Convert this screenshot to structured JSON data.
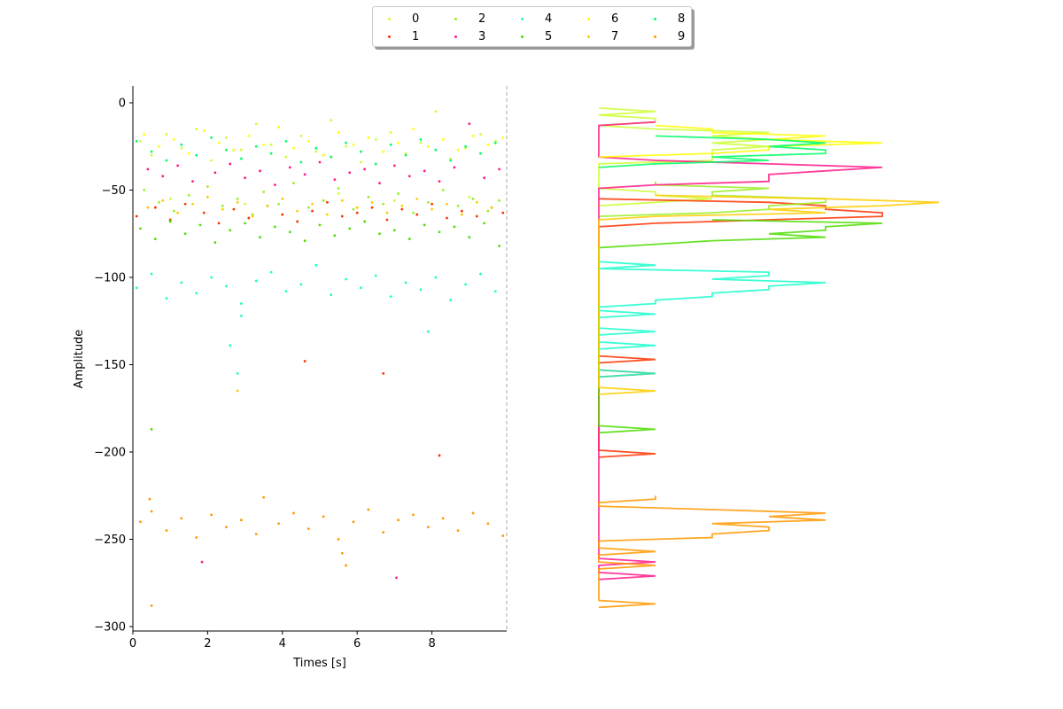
{
  "chart_data": [
    {
      "type": "scatter",
      "xlabel": "Times [s]",
      "ylabel": "Amplitude",
      "xlim": [
        0,
        10
      ],
      "ylim": [
        -302,
        10
      ],
      "xticks": [
        "0",
        "2",
        "4",
        "6",
        "8"
      ],
      "yticks": [
        "0",
        "−50",
        "−100",
        "−150",
        "−200",
        "−250",
        "−300"
      ],
      "grid": false,
      "legend_position": "top-center",
      "series": [
        {
          "name": "0",
          "color": "#ccff33",
          "points": [
            [
              0.2,
              -22
            ],
            [
              0.5,
              -30
            ],
            [
              0.9,
              -18
            ],
            [
              1.3,
              -26
            ],
            [
              1.7,
              -15
            ],
            [
              2.1,
              -33
            ],
            [
              2.5,
              -20
            ],
            [
              2.9,
              -27
            ],
            [
              3.3,
              -12
            ],
            [
              3.7,
              -24
            ],
            [
              4.1,
              -31
            ],
            [
              4.5,
              -19
            ],
            [
              4.9,
              -28
            ],
            [
              5.3,
              -10
            ],
            [
              5.7,
              -25
            ],
            [
              6.1,
              -34
            ],
            [
              6.5,
              -21
            ],
            [
              6.9,
              -17
            ],
            [
              7.3,
              -29
            ],
            [
              7.7,
              -23
            ],
            [
              8.1,
              -5
            ],
            [
              8.5,
              -32
            ],
            [
              8.9,
              -26
            ],
            [
              9.3,
              -18
            ],
            [
              9.7,
              -22
            ],
            [
              1.0,
              -55
            ],
            [
              3.0,
              -58
            ],
            [
              5.5,
              -52
            ],
            [
              7.0,
              -56
            ],
            [
              9.0,
              -54
            ]
          ]
        },
        {
          "name": "1",
          "color": "#ff3300",
          "points": [
            [
              0.1,
              -65
            ],
            [
              0.6,
              -60
            ],
            [
              1.0,
              -67
            ],
            [
              1.4,
              -58
            ],
            [
              1.9,
              -63
            ],
            [
              2.3,
              -69
            ],
            [
              2.7,
              -61
            ],
            [
              3.1,
              -66
            ],
            [
              3.6,
              -59
            ],
            [
              4.0,
              -64
            ],
            [
              4.4,
              -68
            ],
            [
              4.8,
              -62
            ],
            [
              5.2,
              -57
            ],
            [
              5.6,
              -65
            ],
            [
              6.0,
              -63
            ],
            [
              6.4,
              -60
            ],
            [
              6.8,
              -67
            ],
            [
              7.2,
              -61
            ],
            [
              7.6,
              -64
            ],
            [
              8.0,
              -58
            ],
            [
              8.4,
              -66
            ],
            [
              8.8,
              -62
            ],
            [
              9.2,
              -65
            ],
            [
              9.6,
              -60
            ],
            [
              9.9,
              -63
            ],
            [
              4.6,
              -148
            ],
            [
              6.7,
              -155
            ],
            [
              8.2,
              -202
            ]
          ]
        },
        {
          "name": "2",
          "color": "#99ee22",
          "points": [
            [
              0.3,
              -50
            ],
            [
              0.7,
              -57
            ],
            [
              1.1,
              -62
            ],
            [
              1.5,
              -53
            ],
            [
              2.0,
              -48
            ],
            [
              2.4,
              -59
            ],
            [
              2.8,
              -55
            ],
            [
              3.2,
              -64
            ],
            [
              3.5,
              -51
            ],
            [
              3.9,
              -58
            ],
            [
              4.3,
              -46
            ],
            [
              4.7,
              -60
            ],
            [
              5.1,
              -56
            ],
            [
              5.5,
              -49
            ],
            [
              5.9,
              -61
            ],
            [
              6.3,
              -54
            ],
            [
              6.7,
              -58
            ],
            [
              7.1,
              -52
            ],
            [
              7.5,
              -63
            ],
            [
              7.9,
              -57
            ],
            [
              8.3,
              -50
            ],
            [
              8.7,
              -59
            ],
            [
              9.1,
              -55
            ],
            [
              9.5,
              -62
            ],
            [
              9.8,
              -56
            ]
          ]
        },
        {
          "name": "3",
          "color": "#ff1a8c",
          "points": [
            [
              0.4,
              -38
            ],
            [
              0.8,
              -42
            ],
            [
              1.2,
              -36
            ],
            [
              1.6,
              -45
            ],
            [
              2.2,
              -40
            ],
            [
              2.6,
              -35
            ],
            [
              3.0,
              -43
            ],
            [
              3.4,
              -39
            ],
            [
              3.8,
              -47
            ],
            [
              4.2,
              -37
            ],
            [
              4.6,
              -41
            ],
            [
              5.0,
              -34
            ],
            [
              5.4,
              -44
            ],
            [
              5.8,
              -40
            ],
            [
              6.2,
              -38
            ],
            [
              6.6,
              -46
            ],
            [
              7.0,
              -36
            ],
            [
              7.4,
              -42
            ],
            [
              7.8,
              -39
            ],
            [
              8.2,
              -45
            ],
            [
              8.6,
              -37
            ],
            [
              9.0,
              -12
            ],
            [
              9.4,
              -43
            ],
            [
              9.8,
              -38
            ],
            [
              1.85,
              -263
            ],
            [
              7.05,
              -272
            ]
          ]
        },
        {
          "name": "4",
          "color": "#1affcc",
          "points": [
            [
              0.1,
              -106
            ],
            [
              0.5,
              -98
            ],
            [
              0.9,
              -112
            ],
            [
              1.3,
              -103
            ],
            [
              1.7,
              -109
            ],
            [
              2.1,
              -100
            ],
            [
              2.5,
              -105
            ],
            [
              2.9,
              -115
            ],
            [
              3.3,
              -102
            ],
            [
              3.7,
              -97
            ],
            [
              4.1,
              -108
            ],
            [
              4.5,
              -104
            ],
            [
              4.9,
              -93
            ],
            [
              5.3,
              -110
            ],
            [
              5.7,
              -101
            ],
            [
              6.1,
              -106
            ],
            [
              6.5,
              -99
            ],
            [
              6.9,
              -111
            ],
            [
              7.3,
              -103
            ],
            [
              7.7,
              -107
            ],
            [
              8.1,
              -100
            ],
            [
              8.5,
              -113
            ],
            [
              8.9,
              -104
            ],
            [
              9.3,
              -98
            ],
            [
              9.7,
              -108
            ],
            [
              2.6,
              -139
            ],
            [
              2.8,
              -155
            ],
            [
              7.9,
              -131
            ],
            [
              2.9,
              -122
            ]
          ]
        },
        {
          "name": "5",
          "color": "#4ddd00",
          "points": [
            [
              0.2,
              -72
            ],
            [
              0.6,
              -78
            ],
            [
              1.0,
              -68
            ],
            [
              1.4,
              -75
            ],
            [
              1.8,
              -70
            ],
            [
              2.2,
              -80
            ],
            [
              2.6,
              -73
            ],
            [
              3.0,
              -69
            ],
            [
              3.4,
              -77
            ],
            [
              3.8,
              -71
            ],
            [
              4.2,
              -74
            ],
            [
              4.6,
              -79
            ],
            [
              5.0,
              -70
            ],
            [
              5.4,
              -76
            ],
            [
              5.8,
              -72
            ],
            [
              6.2,
              -68
            ],
            [
              6.6,
              -75
            ],
            [
              7.0,
              -73
            ],
            [
              7.4,
              -78
            ],
            [
              7.8,
              -70
            ],
            [
              8.2,
              -74
            ],
            [
              8.6,
              -71
            ],
            [
              9.0,
              -77
            ],
            [
              9.4,
              -69
            ],
            [
              9.8,
              -82
            ],
            [
              0.5,
              -187
            ]
          ]
        },
        {
          "name": "6",
          "color": "#ffff00",
          "points": [
            [
              0.3,
              -18
            ],
            [
              0.7,
              -25
            ],
            [
              1.1,
              -21
            ],
            [
              1.5,
              -29
            ],
            [
              1.9,
              -16
            ],
            [
              2.3,
              -23
            ],
            [
              2.7,
              -27
            ],
            [
              3.1,
              -19
            ],
            [
              3.5,
              -24
            ],
            [
              3.9,
              -14
            ],
            [
              4.3,
              -26
            ],
            [
              4.7,
              -22
            ],
            [
              5.1,
              -30
            ],
            [
              5.5,
              -17
            ],
            [
              5.9,
              -24
            ],
            [
              6.3,
              -20
            ],
            [
              6.7,
              -28
            ],
            [
              7.1,
              -23
            ],
            [
              7.5,
              -15
            ],
            [
              7.9,
              -25
            ],
            [
              8.3,
              -21
            ],
            [
              8.7,
              -27
            ],
            [
              9.1,
              -19
            ],
            [
              9.5,
              -24
            ],
            [
              9.9,
              -20
            ]
          ]
        },
        {
          "name": "7",
          "color": "#ffcc00",
          "points": [
            [
              0.4,
              -60
            ],
            [
              0.8,
              -56
            ],
            [
              1.2,
              -63
            ],
            [
              1.6,
              -58
            ],
            [
              2.0,
              -54
            ],
            [
              2.4,
              -61
            ],
            [
              2.8,
              -57
            ],
            [
              3.2,
              -65
            ],
            [
              3.6,
              -59
            ],
            [
              4.0,
              -55
            ],
            [
              4.4,
              -62
            ],
            [
              4.8,
              -58
            ],
            [
              5.2,
              -64
            ],
            [
              5.6,
              -56
            ],
            [
              6.0,
              -60
            ],
            [
              6.4,
              -57
            ],
            [
              6.8,
              -63
            ],
            [
              7.2,
              -59
            ],
            [
              7.6,
              -55
            ],
            [
              8.0,
              -61
            ],
            [
              8.4,
              -58
            ],
            [
              8.8,
              -64
            ],
            [
              9.2,
              -57
            ],
            [
              9.6,
              -60
            ],
            [
              2.8,
              -165
            ]
          ]
        },
        {
          "name": "8",
          "color": "#00ff66",
          "points": [
            [
              0.1,
              -22
            ],
            [
              0.5,
              -28
            ],
            [
              0.9,
              -33
            ],
            [
              1.3,
              -24
            ],
            [
              1.7,
              -30
            ],
            [
              2.1,
              -20
            ],
            [
              2.5,
              -27
            ],
            [
              2.9,
              -32
            ],
            [
              3.3,
              -25
            ],
            [
              3.7,
              -29
            ],
            [
              4.1,
              -22
            ],
            [
              4.5,
              -34
            ],
            [
              4.9,
              -26
            ],
            [
              5.3,
              -31
            ],
            [
              5.7,
              -23
            ],
            [
              6.1,
              -28
            ],
            [
              6.5,
              -35
            ],
            [
              6.9,
              -24
            ],
            [
              7.3,
              -30
            ],
            [
              7.7,
              -21
            ],
            [
              8.1,
              -27
            ],
            [
              8.5,
              -33
            ],
            [
              8.9,
              -25
            ],
            [
              9.3,
              -29
            ],
            [
              9.7,
              -23
            ]
          ]
        },
        {
          "name": "9",
          "color": "#ff9900",
          "points": [
            [
              0.2,
              -240
            ],
            [
              0.5,
              -234
            ],
            [
              0.9,
              -245
            ],
            [
              1.3,
              -238
            ],
            [
              1.7,
              -249
            ],
            [
              2.1,
              -236
            ],
            [
              2.5,
              -243
            ],
            [
              2.9,
              -239
            ],
            [
              3.3,
              -247
            ],
            [
              3.5,
              -226
            ],
            [
              3.9,
              -241
            ],
            [
              4.3,
              -235
            ],
            [
              4.7,
              -244
            ],
            [
              5.1,
              -237
            ],
            [
              5.5,
              -250
            ],
            [
              5.9,
              -240
            ],
            [
              6.3,
              -233
            ],
            [
              6.7,
              -246
            ],
            [
              7.1,
              -239
            ],
            [
              7.5,
              -236
            ],
            [
              7.9,
              -243
            ],
            [
              8.3,
              -238
            ],
            [
              8.7,
              -245
            ],
            [
              9.1,
              -235
            ],
            [
              9.5,
              -241
            ],
            [
              9.9,
              -248
            ],
            [
              0.45,
              -227
            ],
            [
              0.5,
              -288
            ],
            [
              5.7,
              -265
            ],
            [
              5.6,
              -258
            ]
          ]
        }
      ]
    },
    {
      "type": "line",
      "description_source": "amplitude histogram per series (derived from scatter)",
      "axes_visible": false
    }
  ]
}
